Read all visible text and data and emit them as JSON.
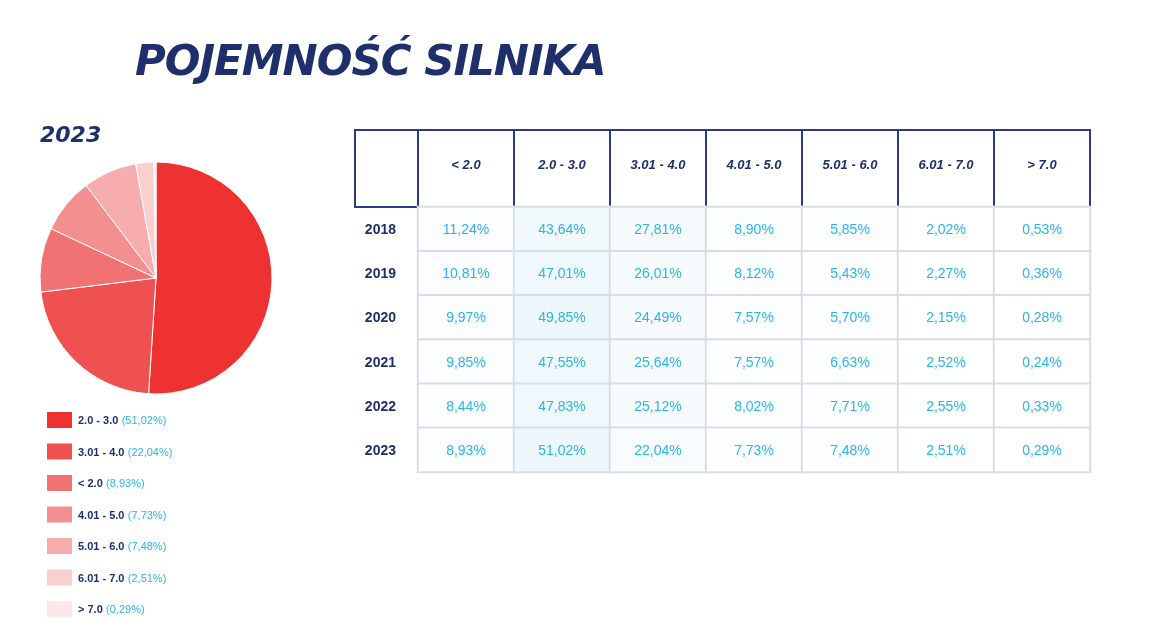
{
  "chart_data": [
    {
      "type": "pie",
      "title": "POJEMNOŚĆ SILNIKA",
      "subtitle": "2023",
      "categories": [
        "2.0 - 3.0",
        "3.01 - 4.0",
        "< 2.0",
        "4.01 - 5.0",
        "5.01 - 6.0",
        "6.01 - 7.0",
        "> 7.0"
      ],
      "values": [
        51.02,
        22.04,
        8.93,
        7.73,
        7.48,
        2.51,
        0.29
      ],
      "value_labels": [
        "(51,02%)",
        "(22,04%)",
        "(8,93%)",
        "(7,73%)",
        "(7,48%)",
        "(2,51%)",
        "(0,29%)"
      ],
      "colors": [
        "#ee3131",
        "#ef5050",
        "#f07272",
        "#f48f8f",
        "#f7adad",
        "#f9cfcf",
        "#fce8e8"
      ],
      "legend": "bottom"
    },
    {
      "type": "heatmap",
      "categories": [
        "< 2.0",
        "2.0 - 3.0",
        "3.01 - 4.0",
        "4.01 - 5.0",
        "5.01 - 6.0",
        "6.01 - 7.0",
        "> 7.0"
      ],
      "y_categories": [
        "2018",
        "2019",
        "2020",
        "2021",
        "2022",
        "2023"
      ],
      "cells": [
        [
          11.24,
          43.64,
          27.81,
          8.9,
          5.85,
          2.02,
          0.53
        ],
        [
          10.81,
          47.01,
          26.01,
          8.12,
          5.43,
          2.27,
          0.36
        ],
        [
          9.97,
          49.85,
          24.49,
          7.57,
          5.7,
          2.15,
          0.28
        ],
        [
          9.85,
          47.55,
          25.64,
          7.57,
          6.63,
          2.52,
          0.24
        ],
        [
          8.44,
          47.83,
          25.12,
          8.02,
          7.71,
          2.55,
          0.33
        ],
        [
          8.93,
          51.02,
          22.04,
          7.73,
          7.48,
          2.51,
          0.29
        ]
      ],
      "cell_labels": [
        [
          "11,24%",
          "43,64%",
          "27,81%",
          "8,90%",
          "5,85%",
          "2,02%",
          "0,53%"
        ],
        [
          "10,81%",
          "47,01%",
          "26,01%",
          "8,12%",
          "5,43%",
          "2,27%",
          "0,36%"
        ],
        [
          "9,97%",
          "49,85%",
          "24,49%",
          "7,57%",
          "5,70%",
          "2,15%",
          "0,28%"
        ],
        [
          "9,85%",
          "47,55%",
          "25,64%",
          "7,57%",
          "6,63%",
          "2,52%",
          "0,24%"
        ],
        [
          "8,44%",
          "47,83%",
          "25,12%",
          "8,02%",
          "7,71%",
          "2,55%",
          "0,33%"
        ],
        [
          "8,93%",
          "51,02%",
          "22,04%",
          "7,73%",
          "7,48%",
          "2,51%",
          "0,29%"
        ]
      ]
    }
  ]
}
